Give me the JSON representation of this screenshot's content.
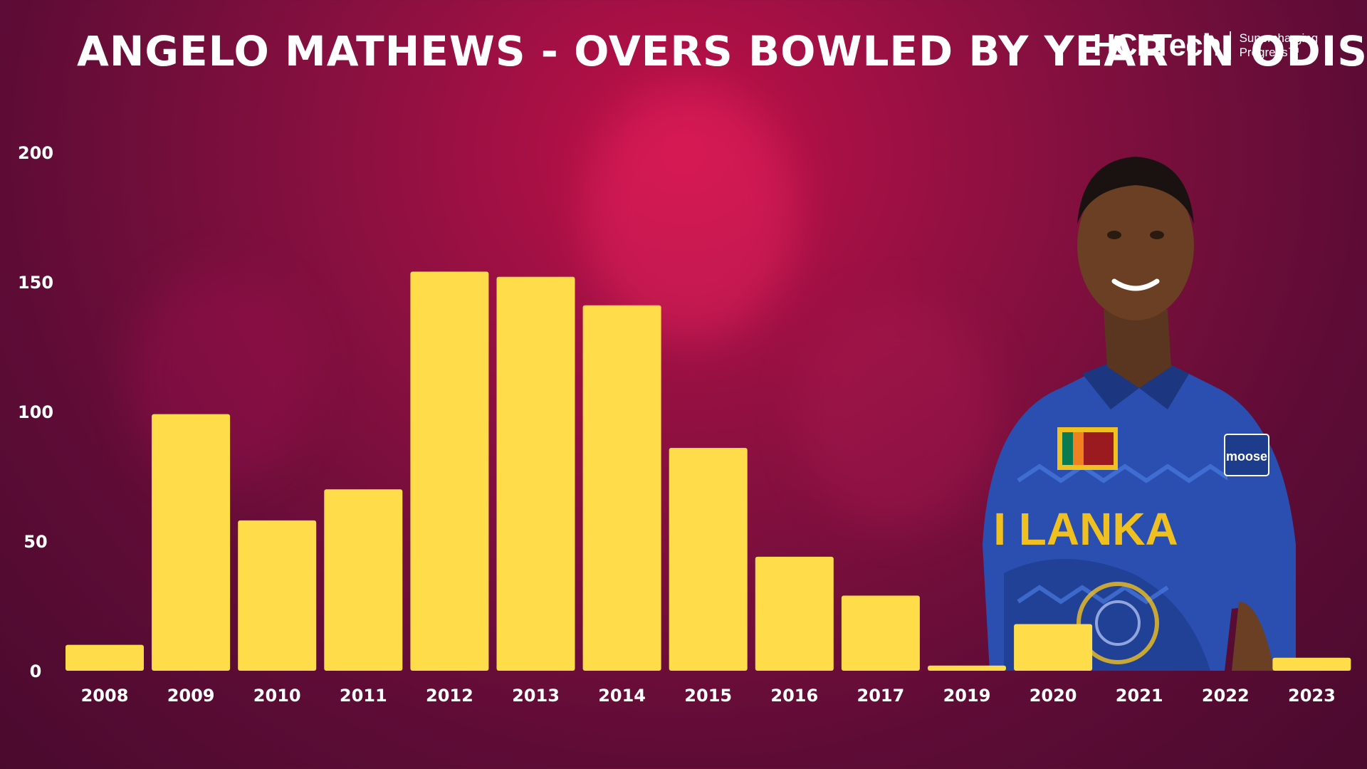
{
  "header": {
    "title": "ANGELO MATHEWS - OVERS BOWLED BY YEAR IN ODIS"
  },
  "logo": {
    "brand": "HCLTech",
    "tagline_line1": "Supercharging",
    "tagline_line2": "Progress™"
  },
  "player_photo": {
    "shirt_text": "I LANKA",
    "sponsor_text": "moose"
  },
  "colors": {
    "bar": "#FFDD4A",
    "background": "#6a0d3a",
    "text": "#ffffff"
  },
  "chart_data": {
    "type": "bar",
    "title": "ANGELO MATHEWS - OVERS BOWLED BY YEAR IN ODIS",
    "categories": [
      "2008",
      "2009",
      "2010",
      "2011",
      "2012",
      "2013",
      "2014",
      "2015",
      "2016",
      "2017",
      "2019",
      "2020",
      "2021",
      "2022",
      "2023"
    ],
    "values": [
      10,
      99,
      58,
      70,
      154,
      152,
      141,
      86,
      44,
      29,
      2,
      18,
      0,
      0,
      5
    ],
    "yticks": [
      "0",
      "50",
      "100",
      "150",
      "200"
    ],
    "ylim": [
      0,
      200
    ],
    "xlabel": "",
    "ylabel": "",
    "grid": false,
    "legend": "none"
  }
}
